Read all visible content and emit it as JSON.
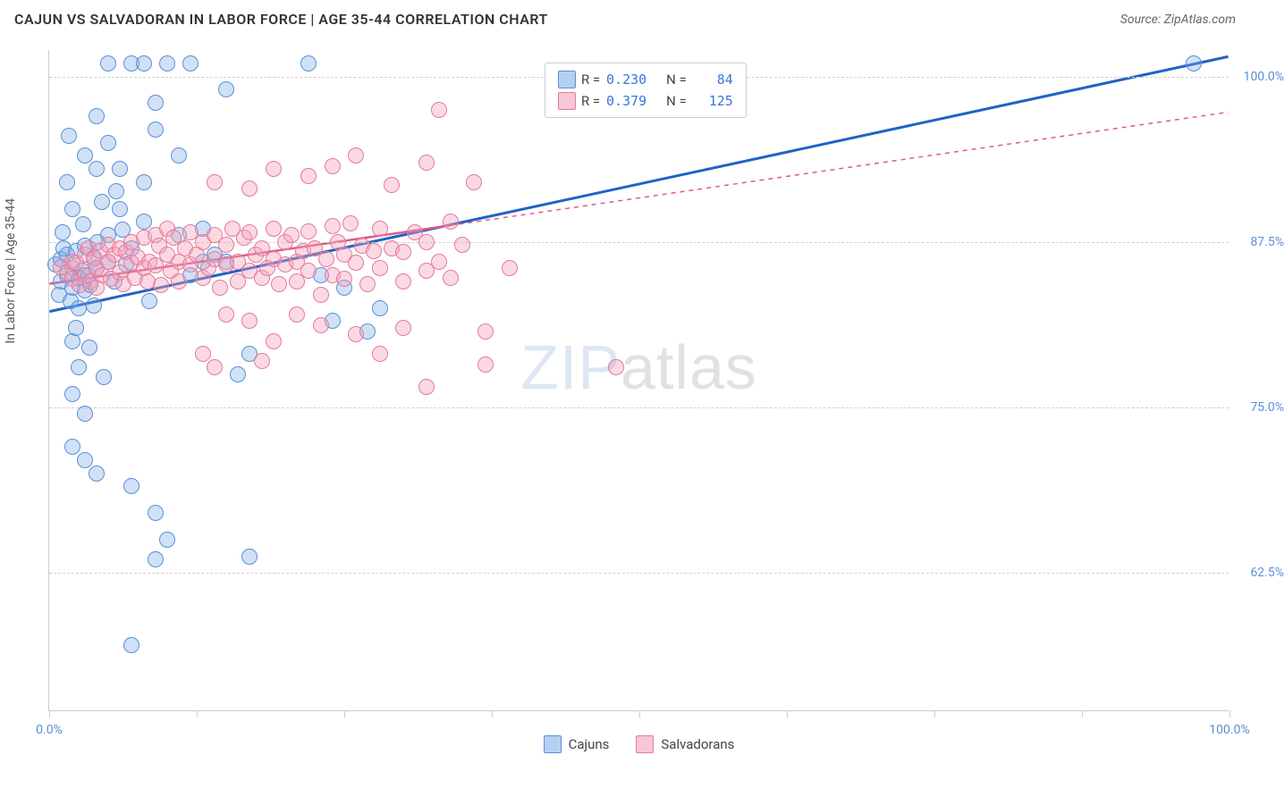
{
  "header": {
    "title": "CAJUN VS SALVADORAN IN LABOR FORCE | AGE 35-44 CORRELATION CHART",
    "source": "Source: ZipAtlas.com"
  },
  "ylabel": "In Labor Force | Age 35-44",
  "watermark": {
    "a": "ZIP",
    "b": "atlas"
  },
  "chart": {
    "type": "scatter",
    "xlim": [
      0,
      100
    ],
    "ylim": [
      52,
      102
    ],
    "xtick_positions": [
      0,
      12.5,
      25,
      37.5,
      50,
      62.5,
      75,
      87.5,
      100
    ],
    "xtick_labels": {
      "0": "0.0%",
      "100": "100.0%"
    },
    "ytick_positions": [
      62.5,
      75,
      87.5,
      100
    ],
    "ytick_labels": {
      "62.5": "62.5%",
      "75": "75.0%",
      "87.5": "87.5%",
      "100": "100.0%"
    },
    "grid_color": "#d0d0d0",
    "background_color": "#ffffff",
    "marker_radius": 9,
    "marker_border_width": 1.5,
    "series": [
      {
        "name": "Cajuns",
        "fill": "rgba(120,170,230,0.35)",
        "stroke": "#5b8fd6",
        "trend_color": "#1f63c7",
        "trend_width": 3,
        "trend_dash": "none",
        "trend": {
          "x0": 0,
          "y0": 82.2,
          "x1": 100,
          "y1": 101.5
        },
        "R": "0.230",
        "N": "84",
        "points": [
          [
            0.5,
            85.8
          ],
          [
            0.8,
            83.5
          ],
          [
            1,
            86.2
          ],
          [
            1,
            84.5
          ],
          [
            1.2,
            87
          ],
          [
            1.5,
            86.5
          ],
          [
            1.5,
            85
          ],
          [
            1.8,
            83
          ],
          [
            2,
            85.5
          ],
          [
            2,
            84
          ],
          [
            2.3,
            86.8
          ],
          [
            2.5,
            84.8
          ],
          [
            2.5,
            82.5
          ],
          [
            2.8,
            85.3
          ],
          [
            3,
            87.2
          ],
          [
            3,
            83.8
          ],
          [
            3.3,
            85
          ],
          [
            3.5,
            84.2
          ],
          [
            3.8,
            86.3
          ],
          [
            4,
            85.5
          ],
          [
            4,
            93
          ],
          [
            4.5,
            90.5
          ],
          [
            5,
            88
          ],
          [
            5,
            86
          ],
          [
            5.5,
            84.5
          ],
          [
            6,
            90
          ],
          [
            6.5,
            85.8
          ],
          [
            7,
            87
          ],
          [
            8,
            89
          ],
          [
            8.5,
            83
          ],
          [
            2,
            80
          ],
          [
            2.5,
            78
          ],
          [
            2,
            76
          ],
          [
            3,
            74.5
          ],
          [
            3,
            71
          ],
          [
            5,
            101
          ],
          [
            7,
            101
          ],
          [
            8,
            101
          ],
          [
            10,
            101
          ],
          [
            12,
            101
          ],
          [
            9,
            98
          ],
          [
            4,
            97
          ],
          [
            5,
            95
          ],
          [
            6,
            93
          ],
          [
            1.5,
            92
          ],
          [
            2,
            90
          ],
          [
            3,
            94
          ],
          [
            11,
            94
          ],
          [
            8,
            92
          ],
          [
            9,
            96
          ],
          [
            11,
            88
          ],
          [
            12,
            85
          ],
          [
            13,
            88.5
          ],
          [
            13,
            86
          ],
          [
            14,
            86.5
          ],
          [
            15,
            99
          ],
          [
            15,
            86
          ],
          [
            16,
            77.5
          ],
          [
            17,
            79
          ],
          [
            22,
            101
          ],
          [
            23,
            85
          ],
          [
            24,
            81.5
          ],
          [
            25,
            84
          ],
          [
            27,
            80.7
          ],
          [
            28,
            82.5
          ],
          [
            2,
            72
          ],
          [
            4,
            70
          ],
          [
            7,
            69
          ],
          [
            9,
            67
          ],
          [
            10,
            65
          ],
          [
            9,
            63.5
          ],
          [
            17,
            63.7
          ],
          [
            7,
            57
          ],
          [
            97,
            101
          ],
          [
            2.3,
            81
          ],
          [
            3.8,
            82.7
          ],
          [
            1.1,
            88.2
          ],
          [
            5.7,
            91.3
          ],
          [
            1.7,
            95.5
          ],
          [
            2.9,
            88.8
          ],
          [
            4.1,
            87.5
          ],
          [
            6.2,
            88.4
          ],
          [
            3.4,
            79.5
          ],
          [
            4.6,
            77.3
          ]
        ]
      },
      {
        "name": "Salvadorans",
        "fill": "rgba(245,160,185,0.40)",
        "stroke": "#e47a9a",
        "trend_color": "#e05a85",
        "trend_width": 2.5,
        "trend_dash": "5,5",
        "trend_solid_until": 34,
        "trend": {
          "x0": 0,
          "y0": 84.3,
          "x1": 100,
          "y1": 97.3
        },
        "R": "0.379",
        "N": "125",
        "points": [
          [
            1,
            85.6
          ],
          [
            1.5,
            85.2
          ],
          [
            2,
            86
          ],
          [
            2,
            84.7
          ],
          [
            2.3,
            85.9
          ],
          [
            2.6,
            84.2
          ],
          [
            3,
            86.5
          ],
          [
            3,
            85
          ],
          [
            3.3,
            87
          ],
          [
            3.5,
            84.5
          ],
          [
            3.8,
            86.2
          ],
          [
            4,
            85.5
          ],
          [
            4,
            84
          ],
          [
            4.3,
            86.8
          ],
          [
            4.5,
            85
          ],
          [
            5,
            87.3
          ],
          [
            5,
            86
          ],
          [
            5.2,
            84.7
          ],
          [
            5.5,
            86.5
          ],
          [
            6,
            85.2
          ],
          [
            6,
            87
          ],
          [
            6.3,
            84.3
          ],
          [
            6.5,
            86.7
          ],
          [
            7,
            85.9
          ],
          [
            7,
            87.5
          ],
          [
            7.3,
            84.8
          ],
          [
            7.5,
            86.3
          ],
          [
            8,
            85.5
          ],
          [
            8,
            87.8
          ],
          [
            8.3,
            84.5
          ],
          [
            8.5,
            86
          ],
          [
            9,
            88
          ],
          [
            9,
            85.7
          ],
          [
            9.3,
            87.2
          ],
          [
            9.5,
            84.2
          ],
          [
            10,
            86.5
          ],
          [
            10,
            88.5
          ],
          [
            10.3,
            85.3
          ],
          [
            10.5,
            87.8
          ],
          [
            11,
            86
          ],
          [
            11,
            84.5
          ],
          [
            11.5,
            87
          ],
          [
            12,
            85.8
          ],
          [
            12,
            88.2
          ],
          [
            12.5,
            86.5
          ],
          [
            13,
            84.8
          ],
          [
            13,
            87.5
          ],
          [
            13.5,
            85.5
          ],
          [
            14,
            88
          ],
          [
            14,
            86.2
          ],
          [
            14.5,
            84
          ],
          [
            15,
            87.3
          ],
          [
            15,
            85.8
          ],
          [
            15.5,
            88.5
          ],
          [
            16,
            86
          ],
          [
            16,
            84.5
          ],
          [
            16.5,
            87.8
          ],
          [
            17,
            85.3
          ],
          [
            17,
            88.2
          ],
          [
            17.5,
            86.5
          ],
          [
            18,
            84.8
          ],
          [
            18,
            87
          ],
          [
            18.5,
            85.5
          ],
          [
            19,
            88.5
          ],
          [
            19,
            86.2
          ],
          [
            19.5,
            84.3
          ],
          [
            20,
            87.5
          ],
          [
            20,
            85.8
          ],
          [
            20.5,
            88
          ],
          [
            21,
            86
          ],
          [
            21,
            84.5
          ],
          [
            21.5,
            86.8
          ],
          [
            22,
            85.3
          ],
          [
            22,
            88.3
          ],
          [
            22.5,
            87
          ],
          [
            23,
            83.5
          ],
          [
            23.5,
            86.2
          ],
          [
            24,
            88.7
          ],
          [
            24,
            85
          ],
          [
            24.5,
            87.5
          ],
          [
            25,
            84.7
          ],
          [
            25,
            86.5
          ],
          [
            25.5,
            88.9
          ],
          [
            26,
            85.9
          ],
          [
            26.5,
            87.2
          ],
          [
            27,
            84.3
          ],
          [
            27.5,
            86.8
          ],
          [
            28,
            88.5
          ],
          [
            28,
            85.5
          ],
          [
            29,
            87
          ],
          [
            30,
            84.5
          ],
          [
            30,
            86.7
          ],
          [
            31,
            88.2
          ],
          [
            32,
            85.3
          ],
          [
            32,
            87.5
          ],
          [
            33,
            86
          ],
          [
            34,
            89
          ],
          [
            34,
            84.8
          ],
          [
            35,
            87.3
          ],
          [
            14,
            92
          ],
          [
            17,
            91.5
          ],
          [
            19,
            93
          ],
          [
            22,
            92.5
          ],
          [
            24,
            93.2
          ],
          [
            26,
            94
          ],
          [
            29,
            91.8
          ],
          [
            32,
            93.5
          ],
          [
            36,
            92
          ],
          [
            33,
            97.5
          ],
          [
            15,
            82
          ],
          [
            17,
            81.5
          ],
          [
            19,
            80
          ],
          [
            21,
            82
          ],
          [
            23,
            81.2
          ],
          [
            26,
            80.5
          ],
          [
            28,
            79
          ],
          [
            30,
            81
          ],
          [
            32,
            76.5
          ],
          [
            37,
            78.2
          ],
          [
            39,
            85.5
          ],
          [
            13,
            79
          ],
          [
            14,
            78
          ],
          [
            18,
            78.5
          ],
          [
            37,
            80.7
          ],
          [
            48,
            78
          ]
        ]
      }
    ]
  },
  "legendTop": {
    "rows": [
      {
        "swatch_fill": "rgba(120,170,230,0.55)",
        "swatch_stroke": "#5b8fd6",
        "R": "0.230",
        "N": "84"
      },
      {
        "swatch_fill": "rgba(245,160,185,0.60)",
        "swatch_stroke": "#e47a9a",
        "R": "0.379",
        "N": "125"
      }
    ]
  },
  "legendBottom": [
    {
      "swatch_fill": "rgba(120,170,230,0.55)",
      "swatch_stroke": "#5b8fd6",
      "label": "Cajuns"
    },
    {
      "swatch_fill": "rgba(245,160,185,0.60)",
      "swatch_stroke": "#e47a9a",
      "label": "Salvadorans"
    }
  ]
}
